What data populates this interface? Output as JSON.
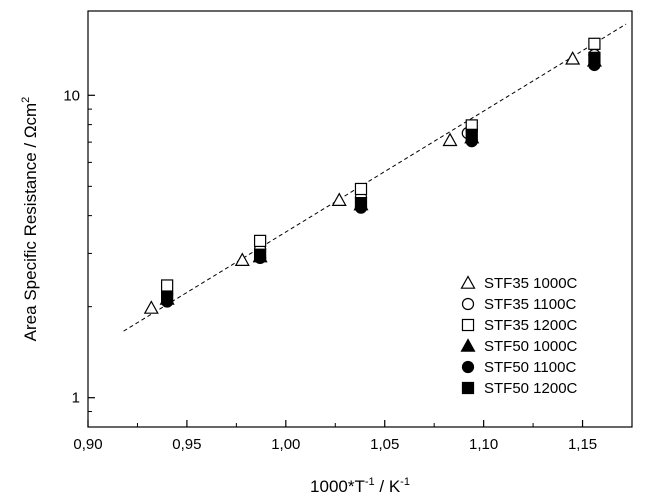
{
  "chart_data": {
    "type": "scatter",
    "xlabel": "1000*T",
    "xlabel_sup1": "-1",
    "xlabel_mid": " / K",
    "xlabel_sup2": "-1",
    "ylabel": "Area Specific Resistance / Ωcm",
    "ylabel_sup": "2",
    "xlim": [
      0.9,
      1.175
    ],
    "ylim": [
      0.8,
      19
    ],
    "yscale": "log",
    "xticks": [
      "0,90",
      "0,95",
      "1,00",
      "1,05",
      "1,10",
      "1,15"
    ],
    "xtick_values": [
      0.9,
      0.95,
      1.0,
      1.05,
      1.1,
      1.15
    ],
    "yticks": [
      "1",
      "10"
    ],
    "ytick_values": [
      1,
      10
    ],
    "legend_position": "lower-right",
    "series": [
      {
        "name": "STF35 1000C",
        "marker": "triangle-open",
        "x": [
          0.932,
          0.978,
          1.027,
          1.083,
          1.145
        ],
        "y": [
          1.98,
          2.85,
          4.5,
          7.1,
          13.2
        ]
      },
      {
        "name": "STF35 1100C",
        "marker": "circle-open",
        "x": [
          0.94,
          0.987,
          1.038,
          1.092,
          1.156
        ],
        "y": [
          2.2,
          3.1,
          4.6,
          7.5,
          13.6
        ]
      },
      {
        "name": "STF35 1200C",
        "marker": "square-open",
        "x": [
          0.94,
          0.987,
          1.038,
          1.094,
          1.156
        ],
        "y": [
          2.35,
          3.3,
          4.9,
          7.95,
          14.8
        ]
      },
      {
        "name": "STF50 1000C",
        "marker": "triangle-filled",
        "x": [
          0.94,
          0.987,
          1.038,
          1.094,
          1.156
        ],
        "y": [
          2.12,
          2.93,
          4.35,
          7.25,
          13.0
        ]
      },
      {
        "name": "STF50 1100C",
        "marker": "circle-filled",
        "x": [
          0.94,
          0.987,
          1.038,
          1.094,
          1.156
        ],
        "y": [
          2.08,
          2.9,
          4.25,
          7.05,
          12.6
        ]
      },
      {
        "name": "STF50 1200C",
        "marker": "square-filled",
        "x": [
          0.94,
          0.987,
          1.038,
          1.094,
          1.156
        ],
        "y": [
          2.15,
          2.97,
          4.4,
          7.4,
          13.3
        ]
      }
    ],
    "fit_line": {
      "style": "dashed",
      "x": [
        0.918,
        1.172
      ],
      "y": [
        1.66,
        17.2
      ]
    }
  }
}
